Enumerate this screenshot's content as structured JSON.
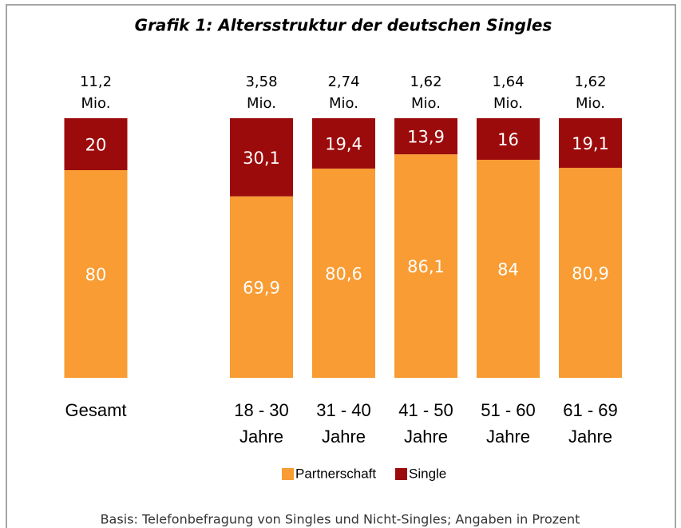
{
  "chart_data": {
    "type": "stacked_bar",
    "title": "Grafik 1: Altersstruktur der deutschen Singles",
    "categories": [
      [
        "Gesamt"
      ],
      [
        "18 - 30",
        "Jahre"
      ],
      [
        "31 - 40",
        "Jahre"
      ],
      [
        "41 - 50",
        "Jahre"
      ],
      [
        "51 - 60",
        "Jahre"
      ],
      [
        "61 - 69",
        "Jahre"
      ]
    ],
    "annotations": [
      [
        "11,2",
        "Mio."
      ],
      [
        "3,58",
        "Mio."
      ],
      [
        "2,74",
        "Mio."
      ],
      [
        "1,62",
        "Mio."
      ],
      [
        "1,64",
        "Mio."
      ],
      [
        "1,62",
        "Mio."
      ]
    ],
    "series": [
      {
        "name": "Partnerschaft",
        "color": "#f89c33",
        "values": [
          80,
          69.9,
          80.6,
          86.1,
          84,
          80.9
        ],
        "value_labels": [
          "80",
          "69,9",
          "80,6",
          "86,1",
          "84",
          "80,9"
        ]
      },
      {
        "name": "Single",
        "color": "#9c0b0b",
        "values": [
          20,
          30.1,
          19.4,
          13.9,
          16,
          19.1
        ],
        "value_labels": [
          "20",
          "30,1",
          "19,4",
          "13,9",
          "16",
          "19,1"
        ]
      }
    ],
    "ylim": [
      0,
      100
    ],
    "note": "Basis: Telefonbefragung von Singles und Nicht-Singles; Angaben in Prozent"
  }
}
